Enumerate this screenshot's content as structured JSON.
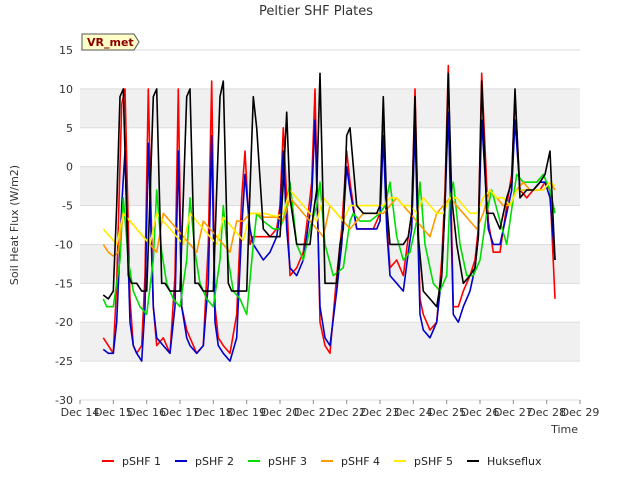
{
  "chart_data": {
    "type": "line",
    "title": "Peltier SHF Plates",
    "xlabel": "Time",
    "ylabel": "Soil Heat Flux (W/m2)",
    "badge": "VR_met",
    "xlim": [
      14,
      29
    ],
    "ylim": [
      -30,
      15
    ],
    "x_ticks": [
      14,
      15,
      16,
      17,
      18,
      19,
      20,
      21,
      22,
      23,
      24,
      25,
      26,
      27,
      28,
      29
    ],
    "x_tick_labels": [
      "Dec 14",
      "Dec 15",
      "Dec 16",
      "Dec 17",
      "Dec 18",
      "Dec 19",
      "Dec 20",
      "Dec 21",
      "Dec 22",
      "Dec 23",
      "Dec 24",
      "Dec 25",
      "Dec 26",
      "Dec 27",
      "Dec 28",
      "Dec 29"
    ],
    "y_ticks": [
      -30,
      -25,
      -20,
      -15,
      -10,
      -5,
      0,
      5,
      10,
      15
    ],
    "y_tick_labels": [
      "-30",
      "-25",
      "-20",
      "-15",
      "-10",
      "-5",
      "0",
      "5",
      "10",
      "15"
    ],
    "legend_position": "bottom",
    "series": [
      {
        "name": "pSHF 1",
        "color": "#ff0000",
        "x": [
          14.7,
          14.85,
          15.0,
          15.1,
          15.25,
          15.35,
          15.5,
          15.6,
          15.7,
          15.85,
          15.95,
          16.05,
          16.2,
          16.3,
          16.5,
          16.7,
          16.85,
          16.95,
          17.05,
          17.2,
          17.3,
          17.5,
          17.7,
          17.85,
          17.95,
          18.05,
          18.15,
          18.3,
          18.5,
          18.7,
          18.85,
          18.95,
          19.1,
          19.2,
          19.35,
          19.5,
          19.7,
          19.9,
          20.0,
          20.1,
          20.2,
          20.3,
          20.5,
          20.7,
          20.9,
          20.95,
          21.05,
          21.2,
          21.35,
          21.5,
          21.7,
          21.85,
          22.0,
          22.1,
          22.3,
          22.5,
          22.8,
          22.9,
          23.0,
          23.1,
          23.2,
          23.3,
          23.5,
          23.7,
          23.85,
          23.95,
          24.05,
          24.2,
          24.3,
          24.5,
          24.7,
          24.85,
          24.95,
          25.05,
          25.2,
          25.35,
          25.5,
          25.7,
          25.85,
          25.95,
          26.05,
          26.25,
          26.4,
          26.6,
          26.8,
          26.95,
          27.05,
          27.2,
          27.4,
          27.6,
          27.8,
          27.95,
          28.1,
          28.25
        ],
        "y": [
          -22,
          -23,
          -24,
          -15,
          8,
          10,
          -17,
          -23,
          -24,
          -23,
          -14,
          10,
          -18,
          -23,
          -22,
          -24,
          -14,
          10,
          -18,
          -21,
          -22,
          -24,
          -23,
          -10,
          11,
          -18,
          -22,
          -23,
          -24,
          -19,
          -4,
          2,
          -10,
          -9,
          -9,
          -9,
          -9,
          -8,
          -5,
          5,
          -4,
          -14,
          -13,
          -11,
          -4,
          -2,
          10,
          -20,
          -23,
          -24,
          -14,
          -8,
          2,
          -2,
          -8,
          -8,
          -8,
          -7,
          -6,
          8,
          -7,
          -13,
          -12,
          -14,
          -9,
          -6,
          10,
          -17,
          -19,
          -21,
          -20,
          -12,
          -3,
          13,
          -18,
          -18,
          -16,
          -14,
          -12,
          -8,
          12,
          -7,
          -11,
          -11,
          -5,
          -1,
          9,
          -3,
          -4,
          -3,
          -3,
          -2,
          -3,
          -17
        ]
      },
      {
        "name": "pSHF 2",
        "color": "#0000cc",
        "x": [
          14.7,
          14.85,
          15.0,
          15.1,
          15.25,
          15.35,
          15.5,
          15.6,
          15.7,
          15.85,
          15.95,
          16.05,
          16.2,
          16.3,
          16.5,
          16.7,
          16.85,
          16.95,
          17.05,
          17.2,
          17.3,
          17.5,
          17.7,
          17.85,
          17.95,
          18.05,
          18.15,
          18.3,
          18.5,
          18.7,
          18.85,
          18.95,
          19.1,
          19.2,
          19.35,
          19.5,
          19.7,
          19.9,
          20.0,
          20.1,
          20.2,
          20.3,
          20.5,
          20.7,
          20.9,
          20.95,
          21.05,
          21.2,
          21.35,
          21.5,
          21.7,
          21.85,
          22.0,
          22.1,
          22.3,
          22.5,
          22.8,
          22.9,
          23.0,
          23.1,
          23.2,
          23.3,
          23.5,
          23.7,
          23.85,
          23.95,
          24.05,
          24.2,
          24.3,
          24.5,
          24.7,
          24.85,
          24.95,
          25.05,
          25.2,
          25.35,
          25.5,
          25.7,
          25.85,
          25.95,
          26.05,
          26.25,
          26.4,
          26.6,
          26.8,
          26.95,
          27.05,
          27.2,
          27.4,
          27.6,
          27.8,
          27.95,
          28.1,
          28.25
        ],
        "y": [
          -23.5,
          -24,
          -24,
          -20,
          -5,
          2,
          -20,
          -23,
          -24,
          -25,
          -18,
          3,
          -18,
          -22,
          -23,
          -24,
          -18,
          2,
          -18,
          -22,
          -23,
          -24,
          -23,
          -15,
          4,
          -20,
          -23,
          -24,
          -25,
          -22,
          -8,
          -1,
          -8,
          -10,
          -11,
          -12,
          -11,
          -9,
          -6,
          2,
          -8,
          -13,
          -14,
          -12,
          -6,
          -4,
          6,
          -18,
          -22,
          -23,
          -16,
          -10,
          0,
          -3,
          -8,
          -8,
          -8,
          -8,
          -7,
          4,
          -8,
          -14,
          -15,
          -16,
          -11,
          -8,
          5,
          -19,
          -21,
          -22,
          -20,
          -14,
          -5,
          7,
          -19,
          -20,
          -18,
          -16,
          -13,
          -9,
          6,
          -8,
          -10,
          -10,
          -6,
          -3,
          6,
          -3,
          -3,
          -3,
          -2,
          -2,
          -4,
          -12
        ]
      },
      {
        "name": "pSHF 3",
        "color": "#00dd00",
        "x": [
          14.7,
          14.8,
          15.0,
          15.2,
          15.3,
          15.45,
          15.6,
          15.8,
          16.0,
          16.2,
          16.3,
          16.45,
          16.6,
          16.8,
          17.0,
          17.2,
          17.3,
          17.45,
          17.6,
          17.8,
          18.0,
          18.2,
          18.3,
          18.45,
          18.6,
          18.8,
          19.0,
          19.2,
          19.3,
          19.5,
          19.8,
          20.0,
          20.15,
          20.3,
          20.5,
          20.7,
          20.9,
          21.1,
          21.2,
          21.35,
          21.6,
          21.9,
          22.1,
          22.2,
          22.4,
          22.7,
          23.0,
          23.15,
          23.3,
          23.5,
          23.7,
          23.9,
          24.1,
          24.2,
          24.35,
          24.6,
          24.8,
          25.0,
          25.1,
          25.2,
          25.4,
          25.6,
          25.8,
          26.0,
          26.2,
          26.35,
          26.6,
          26.8,
          27.0,
          27.1,
          27.3,
          27.5,
          27.7,
          27.9,
          28.1,
          28.25
        ],
        "y": [
          -17,
          -18,
          -18,
          -12,
          -4,
          -12,
          -16,
          -18,
          -19,
          -12,
          -3,
          -11,
          -15,
          -17,
          -18,
          -12,
          -4,
          -11,
          -15,
          -17,
          -18,
          -12,
          -5,
          -12,
          -16,
          -17,
          -19,
          -10,
          -6,
          -7,
          -8,
          -8,
          -6,
          -2,
          -10,
          -12,
          -8,
          -5,
          -2,
          -10,
          -14,
          -13,
          -7,
          -6,
          -7,
          -7,
          -6,
          -5,
          -2,
          -9,
          -12,
          -11,
          -7,
          -2,
          -10,
          -15,
          -16,
          -14,
          -4,
          -2,
          -10,
          -14,
          -14,
          -12,
          -6,
          -3,
          -7,
          -10,
          -4,
          -1,
          -2,
          -2,
          -2,
          -1,
          -3,
          -6
        ]
      },
      {
        "name": "pSHF 4",
        "color": "#ff9900",
        "x": [
          14.7,
          14.85,
          15.0,
          15.15,
          15.3,
          15.5,
          15.7,
          15.9,
          16.1,
          16.3,
          16.5,
          16.7,
          16.9,
          17.1,
          17.3,
          17.5,
          17.7,
          17.9,
          18.1,
          18.3,
          18.5,
          18.7,
          18.9,
          19.1,
          19.3,
          19.5,
          19.7,
          19.9,
          20.1,
          20.3,
          20.5,
          20.7,
          20.9,
          21.1,
          21.3,
          21.5,
          21.7,
          21.9,
          22.1,
          22.3,
          22.5,
          22.8,
          23.1,
          23.3,
          23.5,
          23.7,
          23.9,
          24.1,
          24.3,
          24.5,
          24.7,
          24.9,
          25.1,
          25.3,
          25.5,
          25.7,
          25.9,
          26.1,
          26.3,
          26.5,
          26.7,
          26.9,
          27.1,
          27.3,
          27.5,
          27.7,
          27.9,
          28.1,
          28.25
        ],
        "y": [
          -10,
          -11,
          -11.5,
          -11,
          -6,
          -7,
          -8,
          -9,
          -10,
          -11,
          -6,
          -7,
          -8,
          -9,
          -10,
          -11,
          -7,
          -8,
          -9,
          -10,
          -11,
          -7,
          -7,
          -6,
          -6,
          -6.5,
          -6.5,
          -6.5,
          -7,
          -4,
          -5,
          -6,
          -7,
          -8,
          -9,
          -5,
          -6,
          -7,
          -8,
          -7,
          -6,
          -6,
          -6,
          -5,
          -4,
          -5,
          -6,
          -7,
          -8,
          -9,
          -6,
          -5,
          -4,
          -5,
          -6,
          -7,
          -8,
          -6,
          -3,
          -4,
          -5,
          -5,
          -3,
          -2,
          -3,
          -3,
          -3,
          -2,
          -3
        ]
      },
      {
        "name": "pSHF 5",
        "color": "#ffee00",
        "x": [
          14.7,
          14.9,
          15.1,
          15.3,
          15.5,
          15.7,
          15.9,
          16.1,
          16.3,
          16.5,
          16.7,
          16.9,
          17.1,
          17.3,
          17.5,
          17.7,
          17.9,
          18.1,
          18.3,
          18.5,
          18.7,
          18.9,
          19.1,
          19.3,
          19.5,
          19.7,
          19.9,
          20.1,
          20.3,
          20.5,
          20.7,
          20.9,
          21.1,
          21.3,
          21.5,
          21.7,
          21.9,
          22.1,
          22.3,
          22.5,
          22.8,
          23.1,
          23.3,
          23.5,
          23.7,
          23.9,
          24.1,
          24.3,
          24.5,
          24.7,
          24.9,
          25.1,
          25.3,
          25.5,
          25.7,
          25.9,
          26.1,
          26.3,
          26.5,
          26.7,
          26.9,
          27.1,
          27.3,
          27.5,
          27.7,
          27.9,
          28.1,
          28.25
        ],
        "y": [
          -8,
          -9,
          -10,
          -6,
          -7,
          -8,
          -9,
          -10,
          -6,
          -7,
          -8,
          -9,
          -10,
          -6,
          -7,
          -8,
          -9,
          -10,
          -6.5,
          -7.5,
          -8.5,
          -9.5,
          -6,
          -6,
          -6,
          -6.2,
          -6.4,
          -6,
          -3,
          -4,
          -5,
          -6,
          -7,
          -4,
          -5,
          -6,
          -7,
          -5,
          -5,
          -5,
          -5,
          -5,
          -4,
          -4,
          -5,
          -5,
          -6,
          -4,
          -5,
          -6,
          -6,
          -4,
          -4,
          -5,
          -6,
          -6,
          -4,
          -3,
          -4,
          -4,
          -5,
          -3,
          -3,
          -3,
          -3,
          -3,
          -2,
          -2.5
        ]
      },
      {
        "name": "Hukseflux",
        "color": "#000000",
        "x": [
          14.7,
          14.85,
          15.0,
          15.1,
          15.2,
          15.3,
          15.45,
          15.55,
          15.7,
          15.85,
          16.0,
          16.1,
          16.2,
          16.3,
          16.45,
          16.55,
          16.7,
          16.85,
          17.0,
          17.1,
          17.2,
          17.3,
          17.45,
          17.55,
          17.7,
          17.85,
          18.0,
          18.1,
          18.2,
          18.3,
          18.45,
          18.55,
          18.7,
          18.85,
          19.0,
          19.1,
          19.2,
          19.3,
          19.5,
          19.7,
          19.9,
          20.0,
          20.1,
          20.2,
          20.3,
          20.5,
          20.7,
          20.9,
          21.0,
          21.1,
          21.2,
          21.35,
          21.5,
          21.7,
          21.8,
          21.9,
          22.0,
          22.1,
          22.3,
          22.5,
          22.8,
          22.9,
          23.0,
          23.1,
          23.2,
          23.3,
          23.5,
          23.7,
          23.85,
          23.95,
          24.05,
          24.15,
          24.3,
          24.5,
          24.7,
          24.85,
          24.95,
          25.05,
          25.15,
          25.3,
          25.5,
          25.7,
          25.85,
          25.95,
          26.05,
          26.2,
          26.4,
          26.6,
          26.8,
          26.95,
          27.05,
          27.2,
          27.4,
          27.6,
          27.8,
          27.95,
          28.1,
          28.25
        ],
        "y": [
          -16.5,
          -17,
          -16,
          -5,
          9,
          10,
          -14,
          -15,
          -15,
          -16,
          -16,
          -4,
          9,
          10,
          -15,
          -15,
          -16,
          -16,
          -16,
          -4,
          9,
          10,
          -15,
          -15,
          -16,
          -16,
          -16,
          -3,
          9,
          11,
          -15,
          -16,
          -16,
          -16,
          -16,
          -3,
          9,
          5,
          -8,
          -9,
          -9,
          -9,
          -2,
          7,
          -4,
          -10,
          -10,
          -10,
          -6,
          -3,
          12,
          -15,
          -15,
          -15,
          -10,
          -8,
          4,
          5,
          -5,
          -6,
          -6,
          -6,
          -5,
          9,
          -5,
          -10,
          -10,
          -10,
          -9,
          -6,
          9,
          -9,
          -16,
          -17,
          -18,
          -14,
          -5,
          12,
          -4,
          -10,
          -15,
          -14,
          -13,
          -9,
          11,
          -6,
          -6,
          -8,
          -4,
          -2,
          10,
          -4,
          -3,
          -3,
          -2,
          -1,
          2,
          -12
        ]
      }
    ]
  }
}
